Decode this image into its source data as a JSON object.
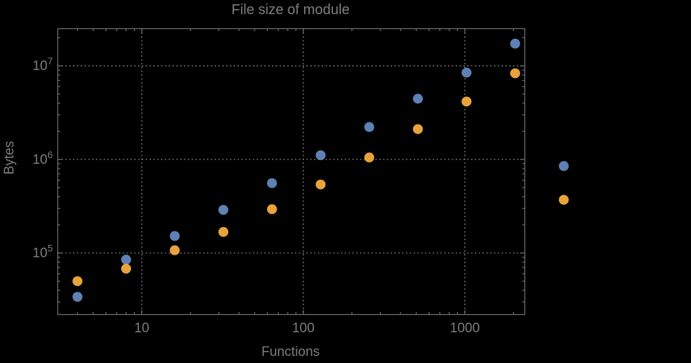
{
  "colors": {
    "background": "#000000",
    "frame": "#6e6e6e",
    "grid": "#6e6e6e",
    "text": "#7d7d7d",
    "series_blue": "#5E81B5",
    "series_orange": "#E8A33C"
  },
  "chart_data": {
    "type": "scatter",
    "title": "File size of module",
    "xlabel": "Functions",
    "ylabel": "Bytes",
    "xscale": "log",
    "yscale": "log",
    "xlim": [
      3.02,
      2350
    ],
    "ylim": [
      22000,
      25000000
    ],
    "grid": "major-decades-dotted",
    "legend_position": "none",
    "plot_range_clipping": false,
    "x_major_ticks": [
      10,
      100,
      1000
    ],
    "x_tick_labels": [
      "10",
      "100",
      "1000"
    ],
    "y_major_ticks": [
      100000,
      1000000,
      10000000
    ],
    "y_tick_labels": [
      "10^5",
      "10^6",
      "10^7"
    ],
    "marker": {
      "shape": "circle",
      "radius_px": 7
    },
    "x": [
      4,
      8,
      16,
      32,
      64,
      128,
      256,
      512,
      1024,
      2048,
      4096
    ],
    "series": [
      {
        "name": "blue",
        "color": "#5E81B5",
        "values": [
          34000,
          85000,
          152000,
          289000,
          558000,
          1110000,
          2220000,
          4460000,
          8470000,
          17300000,
          850000
        ]
      },
      {
        "name": "orange",
        "color": "#E8A33C",
        "values": [
          50000,
          68000,
          107000,
          168000,
          294000,
          540000,
          1050000,
          2110000,
          4160000,
          8330000,
          370000
        ]
      }
    ]
  }
}
